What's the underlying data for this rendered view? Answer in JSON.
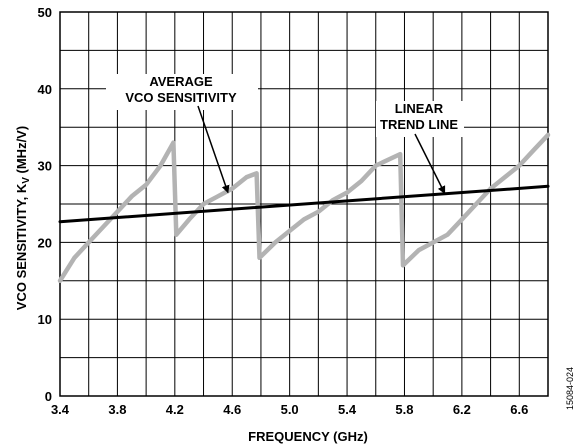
{
  "chart_data": {
    "type": "line",
    "xlabel": "FREQUENCY (GHz)",
    "ylabel_main": "VCO SENSITIVITY, K",
    "ylabel_sub": "V",
    "ylabel_unit": " (MHz/V)",
    "xlim": [
      3.4,
      6.8
    ],
    "ylim": [
      0,
      50
    ],
    "x_ticks": [
      "3.4",
      "3.8",
      "4.2",
      "4.6",
      "5.0",
      "5.4",
      "5.8",
      "6.2",
      "6.6"
    ],
    "y_ticks": [
      "0",
      "10",
      "20",
      "30",
      "40",
      "50"
    ],
    "grid": true,
    "series": [
      {
        "name": "AVERAGE VCO SENSITIVITY",
        "color": "#b3b3b3",
        "x": [
          3.4,
          3.5,
          3.6,
          3.7,
          3.8,
          3.9,
          4.0,
          4.1,
          4.19,
          4.21,
          4.3,
          4.4,
          4.5,
          4.6,
          4.7,
          4.77,
          4.79,
          4.9,
          5.0,
          5.1,
          5.2,
          5.3,
          5.4,
          5.5,
          5.6,
          5.77,
          5.79,
          5.9,
          6.0,
          6.1,
          6.2,
          6.3,
          6.4,
          6.5,
          6.6,
          6.7,
          6.8
        ],
        "y": [
          15,
          18,
          20,
          22,
          24,
          26,
          27.5,
          30,
          33,
          21,
          23,
          25,
          26,
          27,
          28.5,
          29,
          18,
          20,
          21.5,
          23,
          24,
          25.5,
          26.5,
          28,
          30,
          31.5,
          17,
          19,
          20,
          21,
          23,
          25,
          27,
          28.5,
          30,
          32,
          34
        ]
      },
      {
        "name": "LINEAR TREND LINE",
        "color": "#000000",
        "x": [
          3.4,
          6.8
        ],
        "y": [
          22.7,
          27.3
        ]
      }
    ],
    "annotations": [
      {
        "lines": [
          "AVERAGE",
          "VCO SENSITIVITY"
        ],
        "target_x": 4.57,
        "target_y": 26.5
      },
      {
        "lines": [
          "LINEAR",
          "TREND LINE"
        ],
        "target_x": 6.08,
        "target_y": 26.4
      }
    ],
    "figure_id": "15084-024"
  }
}
